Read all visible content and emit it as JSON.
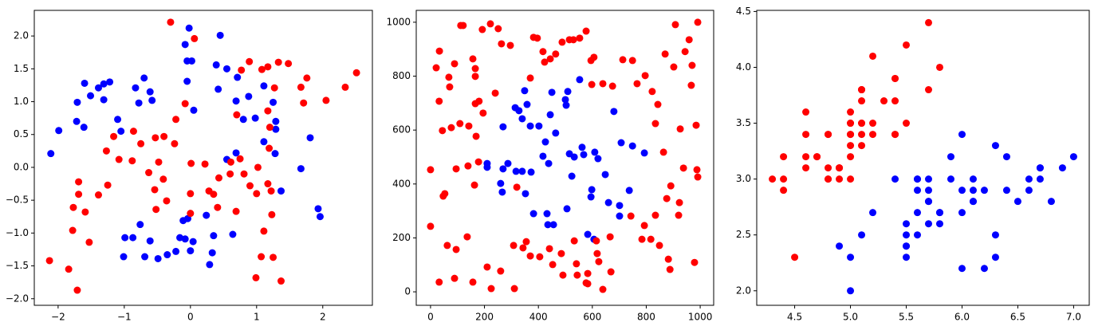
{
  "chart_data": [
    {
      "type": "scatter",
      "xlim": [
        -2.36,
        2.75
      ],
      "ylim": [
        -2.1,
        2.39
      ],
      "xticks": [
        {
          "value": -2,
          "label": "−2"
        },
        {
          "value": -1,
          "label": "−1"
        },
        0,
        1,
        2
      ],
      "yticks": [
        {
          "value": -2,
          "label": "−2.0"
        },
        {
          "value": -1.5,
          "label": "−1.5"
        },
        {
          "value": -1,
          "label": "−1.0"
        },
        {
          "value": -0.5,
          "label": "−0.5"
        },
        {
          "value": 0,
          "label": "0.0"
        },
        0.5,
        {
          "value": 1,
          "label": "1.0"
        },
        1.5,
        {
          "value": 2,
          "label": "2.0"
        }
      ],
      "series": [
        {
          "color": "#0000ff",
          "x": [
            -2.11,
            -1.99,
            -1.72,
            -1.61,
            -1.71,
            -1.6,
            -1.51,
            -1.39,
            -1.31,
            -1.22,
            -1.31,
            -1.1,
            -1.05,
            -0.83,
            -0.78,
            -0.7,
            -0.61,
            -0.58,
            -0.02,
            -0.08,
            -0.05,
            0.02,
            -0.05,
            0.05,
            0.45,
            0.39,
            0.55,
            0.71,
            0.42,
            0.69,
            0.88,
            0.8,
            0.98,
            1.25,
            1.29,
            1.11,
            1.29,
            1.11,
            1.28,
            1.37,
            1.67,
            1.81,
            1.93,
            1.96,
            0.69,
            0.55,
            0.24,
            0.35,
            -0.04,
            -0.11,
            -0.16,
            -0.22,
            -0.35,
            -0.49,
            -0.69,
            -0.87,
            -0.99,
            -1.01,
            -0.76,
            -0.61,
            -0.08,
            0.04,
            0.0,
            0.29,
            0.64,
            0.33
          ],
          "y": [
            0.21,
            0.56,
            0.7,
            0.61,
            0.99,
            1.28,
            1.09,
            1.21,
            1.27,
            1.3,
            1.03,
            0.73,
            0.55,
            1.21,
            0.98,
            1.36,
            1.15,
            1.02,
            2.12,
            1.87,
            1.62,
            1.62,
            1.31,
            0.87,
            2.01,
            1.56,
            1.5,
            1.37,
            1.19,
            1.01,
            1.08,
            0.73,
            0.75,
            0.99,
            0.7,
            1.24,
            0.58,
            0.39,
            0.21,
            -0.36,
            -0.02,
            0.45,
            -0.63,
            -0.75,
            0.22,
            0.12,
            -0.73,
            -1.04,
            -0.78,
            -0.81,
            -1.07,
            -1.28,
            -1.33,
            -1.39,
            -1.36,
            -1.07,
            -1.07,
            -1.36,
            -0.87,
            -1.12,
            -1.09,
            -1.13,
            -1.27,
            -1.48,
            -1.02,
            -1.3
          ]
        },
        {
          "color": "#ff0000",
          "x": [
            -2.13,
            -1.84,
            -1.71,
            -1.78,
            -1.77,
            -1.69,
            -1.69,
            -1.59,
            -1.53,
            -1.39,
            -1.27,
            -1.25,
            -1.16,
            -1.08,
            -0.88,
            -0.86,
            -0.75,
            -0.53,
            -0.3,
            0.06,
            -0.08,
            -0.22,
            -0.24,
            -0.4,
            -0.48,
            -0.63,
            -0.54,
            -0.41,
            -0.36,
            -0.52,
            0.01,
            0.22,
            0.43,
            0.28,
            0.0,
            0.0,
            0.35,
            0.41,
            0.61,
            0.6,
            0.75,
            0.69,
            0.81,
            0.7,
            0.77,
            0.89,
            1.08,
            1.17,
            1.27,
            1.17,
            1.2,
            1.33,
            1.48,
            1.67,
            1.71,
            1.76,
            2.05,
            2.34,
            2.51,
            0.9,
            1.02,
            1.0,
            1.17,
            1.22,
            1.23,
            1.11,
            0.99,
            1.07,
            1.25,
            1.37,
            1.19
          ],
          "y": [
            -1.42,
            -1.55,
            -1.87,
            -0.96,
            -0.61,
            -0.22,
            -0.41,
            -0.68,
            -1.14,
            -0.42,
            0.25,
            -0.27,
            0.47,
            0.12,
            0.1,
            0.55,
            0.36,
            0.45,
            2.21,
            1.96,
            0.97,
            0.73,
            0.36,
            0.47,
            0.08,
            -0.08,
            -0.34,
            -0.18,
            -0.51,
            -0.64,
            0.06,
            0.05,
            -0.16,
            -0.36,
            -0.4,
            -0.7,
            -0.41,
            -0.61,
            0.08,
            -0.1,
            0.13,
            -0.67,
            -0.1,
            0.8,
            1.48,
            1.61,
            1.49,
            1.53,
            1.21,
            0.86,
            0.61,
            1.6,
            1.58,
            1.22,
            0.98,
            1.36,
            1.02,
            1.22,
            1.44,
            -0.28,
            0.0,
            -0.4,
            -0.25,
            -0.36,
            -0.72,
            -0.97,
            -1.68,
            -1.36,
            -1.37,
            -1.73,
            0.29
          ]
        }
      ]
    },
    {
      "type": "scatter",
      "xlim": [
        -53,
        1050
      ],
      "ylim": [
        -50,
        1044
      ],
      "xticks": [
        0,
        200,
        400,
        600,
        800,
        1000
      ],
      "yticks": [
        0,
        200,
        400,
        600,
        800,
        1000
      ],
      "series": [
        {
          "color": "#0000ff",
          "x": [
            210,
            210,
            260,
            266,
            269,
            287,
            269,
            314,
            328,
            340,
            358,
            317,
            340,
            352,
            370,
            373,
            349,
            382,
            402,
            426,
            432,
            417,
            438,
            435,
            444,
            464,
            456,
            450,
            509,
            503,
            500,
            515,
            533,
            524,
            506,
            553,
            562,
            568,
            595,
            598,
            609,
            621,
            606,
            648,
            660,
            701,
            701,
            707,
            749,
            793,
            737,
            680,
            583
          ],
          "y": [
            476,
            462,
            402,
            370,
            456,
            476,
            612,
            683,
            672,
            642,
            695,
            447,
            447,
            364,
            615,
            444,
            746,
            290,
            615,
            556,
            290,
            503,
            476,
            249,
            657,
            589,
            249,
            740,
            743,
            692,
            713,
            512,
            500,
            429,
            308,
            787,
            536,
            509,
            352,
            379,
            518,
            494,
            195,
            435,
            331,
            320,
            281,
            553,
            541,
            515,
            376,
            669,
            213
          ]
        },
        {
          "color": "#ff0000",
          "x": [
            0,
            0,
            21,
            32,
            33,
            32,
            44,
            47,
            53,
            62,
            68,
            71,
            77,
            89,
            95,
            95,
            89,
            109,
            112,
            121,
            142,
            136,
            139,
            157,
            166,
            166,
            166,
            169,
            163,
            157,
            178,
            180,
            195,
            192,
            210,
            222,
            225,
            240,
            251,
            263,
            260,
            296,
            308,
            311,
            320,
            343,
            355,
            370,
            370,
            382,
            396,
            405,
            417,
            423,
            453,
            441,
            444,
            464,
            488,
            485,
            491,
            515,
            530,
            533,
            541,
            544,
            553,
            577,
            577,
            583,
            583,
            598,
            595,
            606,
            615,
            618,
            624,
            639,
            639,
            675,
            666,
            669,
            713,
            749,
            743,
            766,
            784,
            796,
            793,
            817,
            822,
            843,
            834,
            834,
            849,
            864,
            870,
            876,
            888,
            882,
            891,
            902,
            908,
            920,
            923,
            926,
            938,
            944,
            959,
            967,
            970,
            979,
            991,
            985,
            988,
            991
          ],
          "y": [
            453,
            243,
            831,
            707,
            893,
            36,
            598,
            355,
            364,
            172,
            796,
            760,
            609,
            846,
            456,
            157,
            50,
            624,
            988,
            988,
            615,
            204,
            467,
            864,
            828,
            799,
            698,
            577,
            396,
            36,
            482,
            707,
            663,
            973,
            92,
            994,
            12,
            737,
            976,
            920,
            77,
            914,
            172,
            12,
            388,
            163,
            186,
            133,
            793,
            944,
            941,
            130,
            891,
            852,
            101,
            160,
            864,
            882,
            926,
            142,
            62,
            935,
            935,
            189,
            104,
            62,
            941,
            967,
            33,
            30,
            68,
            769,
            858,
            870,
            189,
            142,
            112,
            9,
            772,
            763,
            204,
            74,
            861,
            858,
            281,
            772,
            195,
            802,
            246,
            195,
            743,
            695,
            624,
            284,
            172,
            518,
            882,
            346,
            83,
            121,
            393,
            834,
            991,
            284,
            331,
            604,
            459,
            891,
            935,
            766,
            840,
            109,
            1000,
            618,
            453,
            426
          ]
        }
      ]
    },
    {
      "type": "scatter",
      "xlim": [
        4.16,
        7.14
      ],
      "ylim": [
        1.87,
        4.51
      ],
      "xticks": [
        4.5,
        {
          "value": 5,
          "label": "5.0"
        },
        5.5,
        {
          "value": 6,
          "label": "6.0"
        },
        6.5,
        {
          "value": 7,
          "label": "7.0"
        }
      ],
      "yticks": [
        {
          "value": 2,
          "label": "2.0"
        },
        2.5,
        {
          "value": 3,
          "label": "3.0"
        },
        3.5,
        {
          "value": 4,
          "label": "4.0"
        },
        4.5
      ],
      "series": [
        {
          "color": "#ff0000",
          "x": [
            5.1,
            4.9,
            4.7,
            4.6,
            5.0,
            5.4,
            4.6,
            5.0,
            4.4,
            4.9,
            5.4,
            4.8,
            4.8,
            4.3,
            5.8,
            5.7,
            5.4,
            5.1,
            5.7,
            5.1,
            5.4,
            5.1,
            4.6,
            5.1,
            4.8,
            5.0,
            5.0,
            5.2,
            5.2,
            4.7,
            4.8,
            5.4,
            5.2,
            5.5,
            4.9,
            5.0,
            5.5,
            4.9,
            4.4,
            5.1,
            5.0,
            4.5,
            4.4,
            5.0,
            5.1,
            4.8,
            5.1,
            4.6,
            5.3,
            5.0
          ],
          "y": [
            3.5,
            3.0,
            3.2,
            3.1,
            3.6,
            3.9,
            3.4,
            3.4,
            2.9,
            3.1,
            3.7,
            3.4,
            3.0,
            3.0,
            4.0,
            4.4,
            3.9,
            3.5,
            3.8,
            3.8,
            3.4,
            3.7,
            3.6,
            3.3,
            3.4,
            3.0,
            3.4,
            3.5,
            3.4,
            3.2,
            3.1,
            3.4,
            4.1,
            4.2,
            3.1,
            3.2,
            3.5,
            3.1,
            3.0,
            3.4,
            3.5,
            2.3,
            3.2,
            3.5,
            3.8,
            3.0,
            3.8,
            3.2,
            3.7,
            3.3
          ]
        },
        {
          "color": "#0000ff",
          "x": [
            7.0,
            6.4,
            6.9,
            5.5,
            6.5,
            5.7,
            6.3,
            4.9,
            6.6,
            5.2,
            5.0,
            5.9,
            6.0,
            6.1,
            5.6,
            6.7,
            5.6,
            5.8,
            6.2,
            5.6,
            5.9,
            6.1,
            6.3,
            6.1,
            6.4,
            6.6,
            6.8,
            6.7,
            6.0,
            5.7,
            5.5,
            5.5,
            5.8,
            6.0,
            5.4,
            6.0,
            6.7,
            6.3,
            5.6,
            5.5,
            5.5,
            6.1,
            5.8,
            5.0,
            5.6,
            5.7,
            5.7,
            6.2,
            5.1,
            5.7
          ],
          "y": [
            3.2,
            3.2,
            3.1,
            2.3,
            2.8,
            2.8,
            3.3,
            2.4,
            2.9,
            2.7,
            2.0,
            3.0,
            2.2,
            2.9,
            2.9,
            3.1,
            3.0,
            2.7,
            2.2,
            2.5,
            3.2,
            2.8,
            2.5,
            2.8,
            2.9,
            3.0,
            2.8,
            3.0,
            2.9,
            2.6,
            2.4,
            2.4,
            2.7,
            2.7,
            3.0,
            3.4,
            3.1,
            2.3,
            3.0,
            2.5,
            2.6,
            3.0,
            2.6,
            2.3,
            2.7,
            3.0,
            2.9,
            2.9,
            2.5,
            2.8
          ]
        }
      ]
    }
  ]
}
